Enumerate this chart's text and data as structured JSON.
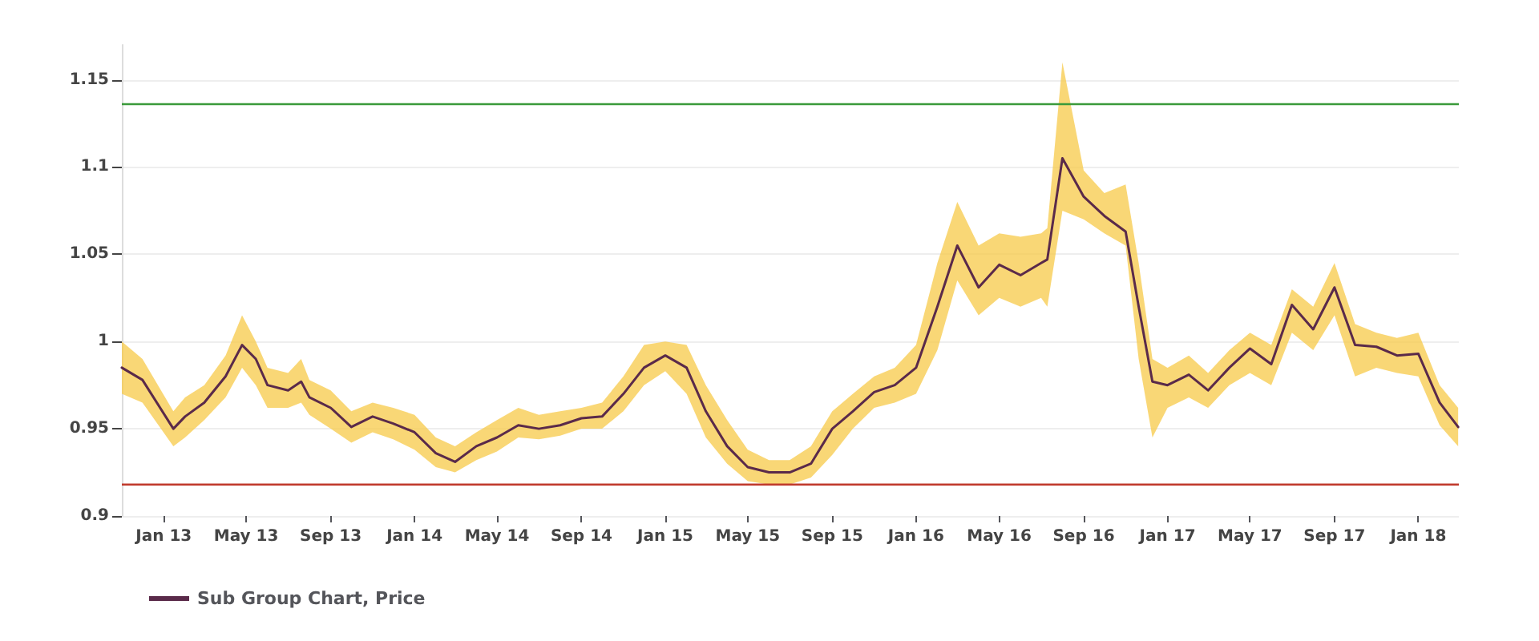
{
  "chart_data": {
    "type": "line",
    "x": [
      "2012-11",
      "2012-12",
      "2013-01-15",
      "2013-02",
      "2013-03",
      "2013-04",
      "2013-04-25",
      "2013-05-15",
      "2013-06",
      "2013-07",
      "2013-07-20",
      "2013-08",
      "2013-09",
      "2013-10",
      "2013-11",
      "2013-12",
      "2014-01",
      "2014-02",
      "2014-03",
      "2014-04",
      "2014-05",
      "2014-06",
      "2014-07",
      "2014-08",
      "2014-09",
      "2014-10",
      "2014-11",
      "2014-12",
      "2015-01",
      "2015-02",
      "2015-03",
      "2015-04",
      "2015-05",
      "2015-06",
      "2015-07",
      "2015-08",
      "2015-09",
      "2015-10",
      "2015-11",
      "2015-12",
      "2016-01",
      "2016-02",
      "2016-03",
      "2016-04",
      "2016-05",
      "2016-06",
      "2016-07",
      "2016-07-10",
      "2016-08",
      "2016-09",
      "2016-10",
      "2016-11",
      "2016-11-20",
      "2016-12-10",
      "2017-01",
      "2017-02",
      "2017-03",
      "2017-04",
      "2017-05",
      "2017-06",
      "2017-07",
      "2017-08",
      "2017-09",
      "2017-10",
      "2017-11",
      "2017-12",
      "2018-01",
      "2018-02",
      "2018-02-28"
    ],
    "series": [
      {
        "name": "Sub Group Chart, Price",
        "color": "#5a2a4a",
        "values": [
          0.985,
          0.978,
          0.95,
          0.957,
          0.965,
          0.98,
          0.998,
          0.99,
          0.975,
          0.972,
          0.977,
          0.968,
          0.962,
          0.951,
          0.957,
          0.953,
          0.948,
          0.936,
          0.931,
          0.94,
          0.945,
          0.952,
          0.95,
          0.952,
          0.956,
          0.957,
          0.97,
          0.985,
          0.992,
          0.985,
          0.96,
          0.94,
          0.928,
          0.925,
          0.925,
          0.93,
          0.95,
          0.96,
          0.971,
          0.975,
          0.985,
          1.02,
          1.055,
          1.031,
          1.044,
          1.038,
          1.045,
          1.047,
          1.105,
          1.083,
          1.072,
          1.063,
          1.02,
          0.977,
          0.975,
          0.981,
          0.972,
          0.985,
          0.996,
          0.987,
          1.021,
          1.007,
          1.031,
          0.998,
          0.997,
          0.992,
          0.993,
          0.965,
          0.951
        ],
        "lower": [
          0.97,
          0.965,
          0.94,
          0.945,
          0.955,
          0.968,
          0.985,
          0.975,
          0.962,
          0.962,
          0.965,
          0.958,
          0.95,
          0.942,
          0.948,
          0.944,
          0.938,
          0.928,
          0.925,
          0.932,
          0.937,
          0.945,
          0.944,
          0.946,
          0.95,
          0.95,
          0.96,
          0.975,
          0.983,
          0.97,
          0.945,
          0.93,
          0.92,
          0.918,
          0.918,
          0.922,
          0.935,
          0.95,
          0.962,
          0.965,
          0.97,
          0.995,
          1.035,
          1.015,
          1.025,
          1.02,
          1.025,
          1.02,
          1.075,
          1.07,
          1.062,
          1.055,
          0.99,
          0.945,
          0.962,
          0.968,
          0.962,
          0.975,
          0.982,
          0.975,
          1.005,
          0.995,
          1.015,
          0.98,
          0.985,
          0.982,
          0.98,
          0.952,
          0.94
        ],
        "upper": [
          1.0,
          0.99,
          0.96,
          0.968,
          0.975,
          0.992,
          1.015,
          1.0,
          0.985,
          0.982,
          0.99,
          0.978,
          0.972,
          0.96,
          0.965,
          0.962,
          0.958,
          0.945,
          0.94,
          0.948,
          0.955,
          0.962,
          0.958,
          0.96,
          0.962,
          0.965,
          0.98,
          0.998,
          1.0,
          0.998,
          0.975,
          0.955,
          0.938,
          0.932,
          0.932,
          0.94,
          0.96,
          0.97,
          0.98,
          0.985,
          0.998,
          1.045,
          1.08,
          1.055,
          1.062,
          1.06,
          1.062,
          1.065,
          1.16,
          1.098,
          1.085,
          1.09,
          1.045,
          0.99,
          0.985,
          0.992,
          0.982,
          0.995,
          1.005,
          0.998,
          1.03,
          1.02,
          1.045,
          1.01,
          1.005,
          1.002,
          1.005,
          0.975,
          0.962
        ]
      }
    ],
    "xlim": [
      "2012-11",
      "2018-03"
    ],
    "xticks": [
      {
        "value": "2013-01",
        "label": "Jan 13"
      },
      {
        "value": "2013-05",
        "label": "May 13"
      },
      {
        "value": "2013-09",
        "label": "Sep 13"
      },
      {
        "value": "2014-01",
        "label": "Jan 14"
      },
      {
        "value": "2014-05",
        "label": "May 14"
      },
      {
        "value": "2014-09",
        "label": "Sep 14"
      },
      {
        "value": "2015-01",
        "label": "Jan 15"
      },
      {
        "value": "2015-05",
        "label": "May 15"
      },
      {
        "value": "2015-09",
        "label": "Sep 15"
      },
      {
        "value": "2016-01",
        "label": "Jan 16"
      },
      {
        "value": "2016-05",
        "label": "May 16"
      },
      {
        "value": "2016-09",
        "label": "Sep 16"
      },
      {
        "value": "2017-01",
        "label": "Jan 17"
      },
      {
        "value": "2017-05",
        "label": "May 17"
      },
      {
        "value": "2017-09",
        "label": "Sep 17"
      },
      {
        "value": "2018-01",
        "label": "Jan 18"
      }
    ],
    "ylim": [
      0.9,
      1.17
    ],
    "yticks": [
      0.9,
      0.95,
      1,
      1.05,
      1.1,
      1.15
    ],
    "ref_lines": [
      {
        "axis": "y",
        "value": 1.136,
        "color": "#3a9a3a"
      },
      {
        "axis": "y",
        "value": 0.918,
        "color": "#c0392b"
      }
    ],
    "grid": "y",
    "legend": "bottom left",
    "marker": "none",
    "line_style": "solid"
  }
}
